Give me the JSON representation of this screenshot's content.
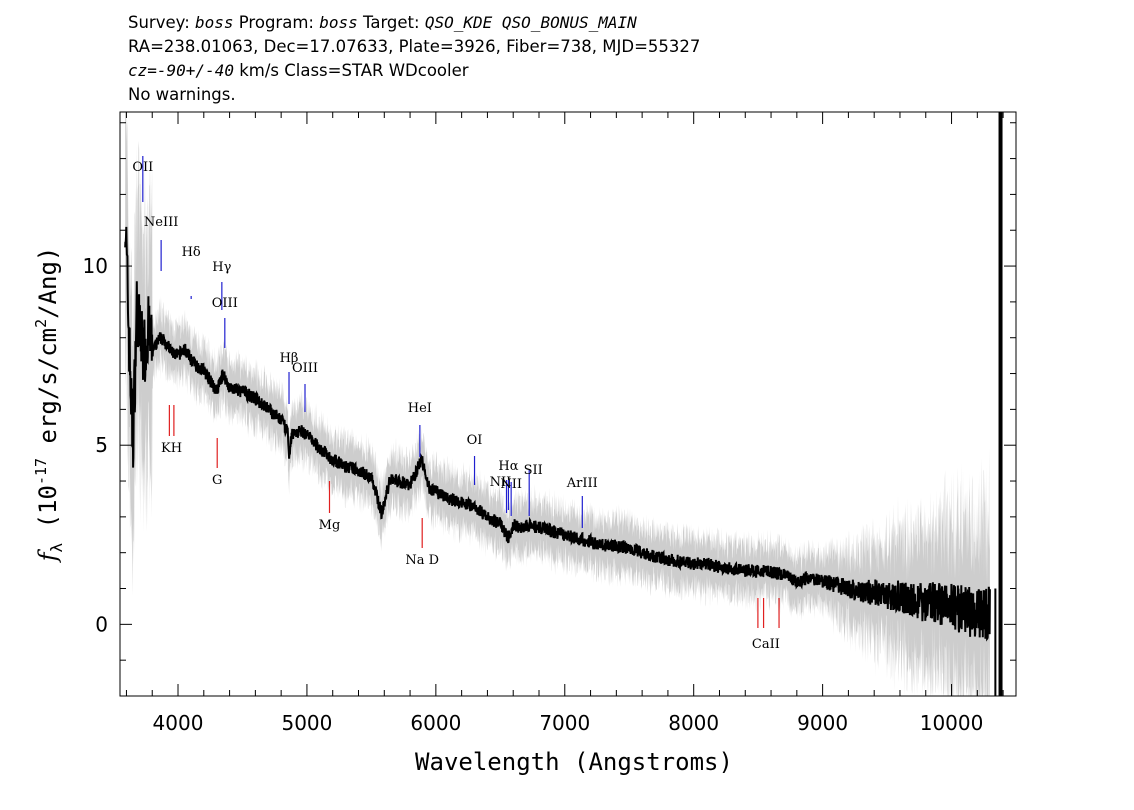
{
  "header": {
    "line1_a": "Survey: ",
    "line1_survey": "boss",
    "line1_b": " Program: ",
    "line1_program": "boss",
    "line1_c": " Target: ",
    "line1_target": "QSO_KDE QSO_BONUS_MAIN",
    "line2": "RA=238.01063, Dec=17.07633, Plate=3926, Fiber=738, MJD=55327",
    "line3_cz": "cz=-90+/-40",
    "line3_rest": " km/s Class=STAR WDcooler",
    "line4": "No warnings."
  },
  "chart_data": {
    "type": "line",
    "xlabel": "Wavelength (Angstroms)",
    "ylabel": "f_λ (10^-17 erg/s/cm^2/Ang)",
    "xlim": [
      3550,
      10500
    ],
    "ylim": [
      -2,
      14.3
    ],
    "x_ticks": [
      4000,
      5000,
      6000,
      7000,
      8000,
      9000,
      10000
    ],
    "y_ticks": [
      0,
      5,
      10
    ],
    "colors": {
      "flux": "#000000",
      "error": "#c8c8c8",
      "emission": "#2020d0",
      "absorption": "#e02020"
    },
    "series": [
      {
        "x": [
          3590,
          3620,
          3650,
          3680,
          3710,
          3740,
          3770,
          3800,
          3830,
          3860,
          3900,
          3950,
          4000,
          4050,
          4100,
          4150,
          4200,
          4250,
          4300,
          4350,
          4400,
          4500,
          4600,
          4700,
          4800,
          4850,
          4861,
          4880,
          4950,
          5000,
          5100,
          5200,
          5300,
          5400,
          5500,
          5580,
          5650,
          5700,
          5800,
          5890,
          5950,
          6000,
          6100,
          6200,
          6300,
          6400,
          6500,
          6563,
          6600,
          6650,
          6700,
          6800,
          6900,
          7000,
          7100,
          7200,
          7300,
          7400,
          7500,
          7600,
          7700,
          7800,
          7900,
          8000,
          8100,
          8200,
          8300,
          8400,
          8500,
          8600,
          8700,
          8800,
          8900,
          9000,
          9100,
          9200,
          9300,
          9400,
          9500,
          9600,
          9700,
          9800,
          9900,
          10000,
          10100,
          10200,
          10300,
          10380
        ],
        "y": [
          11.5,
          8.0,
          5.0,
          8.8,
          8.0,
          7.6,
          8.2,
          7.6,
          7.8,
          8.0,
          7.9,
          7.6,
          7.5,
          7.7,
          7.4,
          7.2,
          7.1,
          6.8,
          6.5,
          7.0,
          6.6,
          6.5,
          6.3,
          6.0,
          5.7,
          5.4,
          4.5,
          5.3,
          5.4,
          5.3,
          4.9,
          4.6,
          4.4,
          4.3,
          4.1,
          3.1,
          4.1,
          4.0,
          3.9,
          4.6,
          3.8,
          3.7,
          3.5,
          3.4,
          3.3,
          3.0,
          2.8,
          2.4,
          2.8,
          2.7,
          2.75,
          2.7,
          2.6,
          2.5,
          2.4,
          2.3,
          2.2,
          2.2,
          2.1,
          2.0,
          1.9,
          1.8,
          1.75,
          1.7,
          1.7,
          1.6,
          1.55,
          1.5,
          1.5,
          1.45,
          1.4,
          1.2,
          1.3,
          1.2,
          1.1,
          1.0,
          0.9,
          0.9,
          0.8,
          0.8,
          0.7,
          0.6,
          0.6,
          0.5,
          0.4,
          0.3,
          0.3,
          14.3
        ]
      }
    ],
    "emission_lines": [
      {
        "label": "OII",
        "x": 3727
      },
      {
        "label": "NeIII",
        "x": 3869
      },
      {
        "label": "Hδ",
        "x": 4102
      },
      {
        "label": "Hγ",
        "x": 4340
      },
      {
        "label": "OIII",
        "x": 4363
      },
      {
        "label": "Hβ",
        "x": 4861
      },
      {
        "label": "OIII",
        "x": 4985
      },
      {
        "label": "HeI",
        "x": 5876
      },
      {
        "label": "OI",
        "x": 6300
      },
      {
        "label": "NII",
        "x": 6548
      },
      {
        "label": "Hα",
        "x": 6563
      },
      {
        "label": "SII",
        "x": 6724
      },
      {
        "label": "NII",
        "x": 6584
      },
      {
        "label": "ArIII",
        "x": 7136
      }
    ],
    "absorption_lines": [
      {
        "label": "KH",
        "x": 3950
      },
      {
        "label": "G",
        "x": 4304
      },
      {
        "label": "Mg",
        "x": 5175
      },
      {
        "label": "Na D",
        "x": 5894
      },
      {
        "label": "CaII",
        "x": 8542
      }
    ]
  }
}
